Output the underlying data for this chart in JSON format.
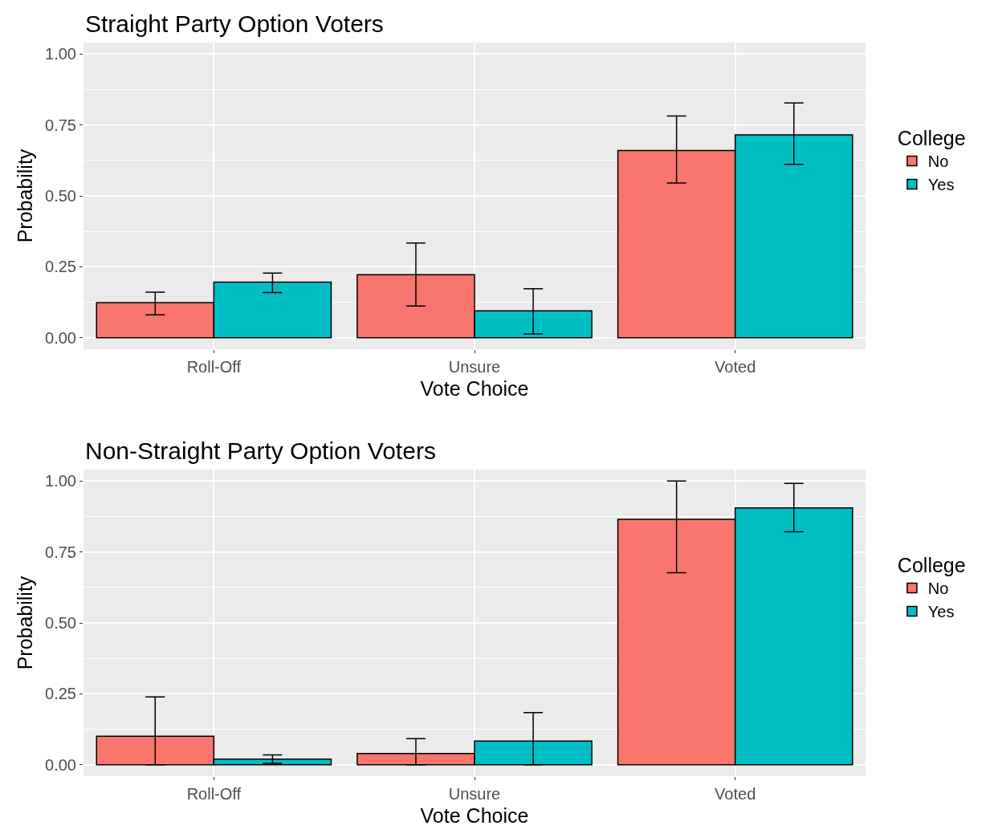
{
  "chart_data": [
    {
      "type": "bar",
      "title": "Straight Party Option Voters",
      "xlabel": "Vote Choice",
      "ylabel": "Probability",
      "legend_title": "College",
      "categories": [
        "Roll-Off",
        "Unsure",
        "Voted"
      ],
      "ylim": [
        -0.04,
        1.04
      ],
      "yticks": [
        {
          "value": 0,
          "label": "0.00"
        },
        {
          "value": 0.25,
          "label": "0.25"
        },
        {
          "value": 0.5,
          "label": "0.50"
        },
        {
          "value": 0.75,
          "label": "0.75"
        },
        {
          "value": 1,
          "label": "1.00"
        }
      ],
      "grid": true,
      "legend": "right",
      "series": [
        {
          "name": "No",
          "color": "#f8766d",
          "values": [
            0.124,
            0.222,
            0.66
          ],
          "errors": [
            [
              0.081,
              0.161
            ],
            [
              0.112,
              0.334
            ],
            [
              0.545,
              0.781
            ]
          ]
        },
        {
          "name": "Yes",
          "color": "#00bfc4",
          "values": [
            0.196,
            0.095,
            0.715
          ],
          "errors": [
            [
              0.159,
              0.228
            ],
            [
              0.014,
              0.173
            ],
            [
              0.611,
              0.827
            ]
          ]
        }
      ]
    },
    {
      "type": "bar",
      "title": "Non-Straight Party Option Voters",
      "xlabel": "Vote Choice",
      "ylabel": "Probability",
      "legend_title": "College",
      "categories": [
        "Roll-Off",
        "Unsure",
        "Voted"
      ],
      "ylim": [
        -0.04,
        1.04
      ],
      "yticks": [
        {
          "value": 0,
          "label": "0.00"
        },
        {
          "value": 0.25,
          "label": "0.25"
        },
        {
          "value": 0.5,
          "label": "0.50"
        },
        {
          "value": 0.75,
          "label": "0.75"
        },
        {
          "value": 1,
          "label": "1.00"
        }
      ],
      "grid": true,
      "legend": "right",
      "series": [
        {
          "name": "No",
          "color": "#f8766d",
          "values": [
            0.101,
            0.04,
            0.865
          ],
          "errors": [
            [
              0,
              0.239
            ],
            [
              0,
              0.092
            ],
            [
              0.677,
              1.0
            ]
          ]
        },
        {
          "name": "Yes",
          "color": "#00bfc4",
          "values": [
            0.02,
            0.084,
            0.905
          ],
          "errors": [
            [
              0.005,
              0.035
            ],
            [
              0,
              0.184
            ],
            [
              0.821,
              0.991
            ]
          ]
        }
      ]
    }
  ]
}
